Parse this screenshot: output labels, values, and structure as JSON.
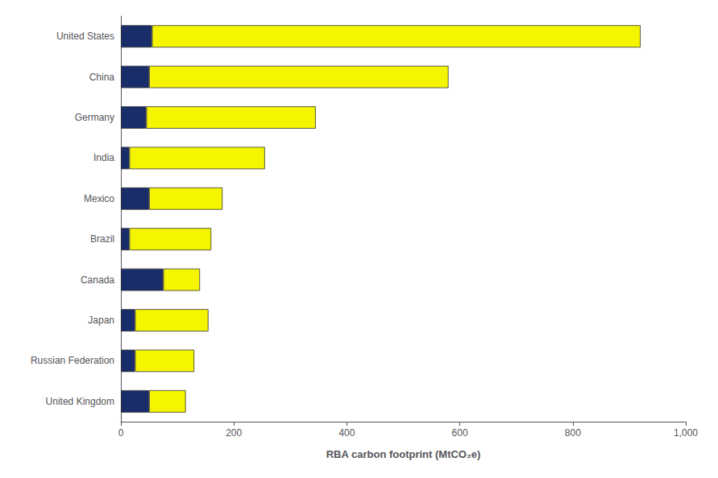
{
  "chart_data": {
    "type": "bar",
    "orientation": "horizontal",
    "stacked": true,
    "xlabel": "RBA carbon footprint (MtCO₂e)",
    "categories": [
      "United States",
      "China",
      "Germany",
      "India",
      "Mexico",
      "Brazil",
      "Canada",
      "Japan",
      "Russian Federation",
      "United Kingdom"
    ],
    "series": [
      {
        "color": "#1a2d6b",
        "values": [
          55,
          50,
          45,
          15,
          50,
          15,
          75,
          25,
          25,
          50
        ]
      },
      {
        "color": "#f5f500",
        "values": [
          865,
          530,
          300,
          240,
          130,
          145,
          65,
          130,
          105,
          65
        ]
      }
    ],
    "xlim": [
      0,
      1000
    ],
    "xticks": [
      0,
      200,
      400,
      600,
      800,
      {
        "value": 1000,
        "label": "1,000"
      }
    ],
    "grid": false
  }
}
